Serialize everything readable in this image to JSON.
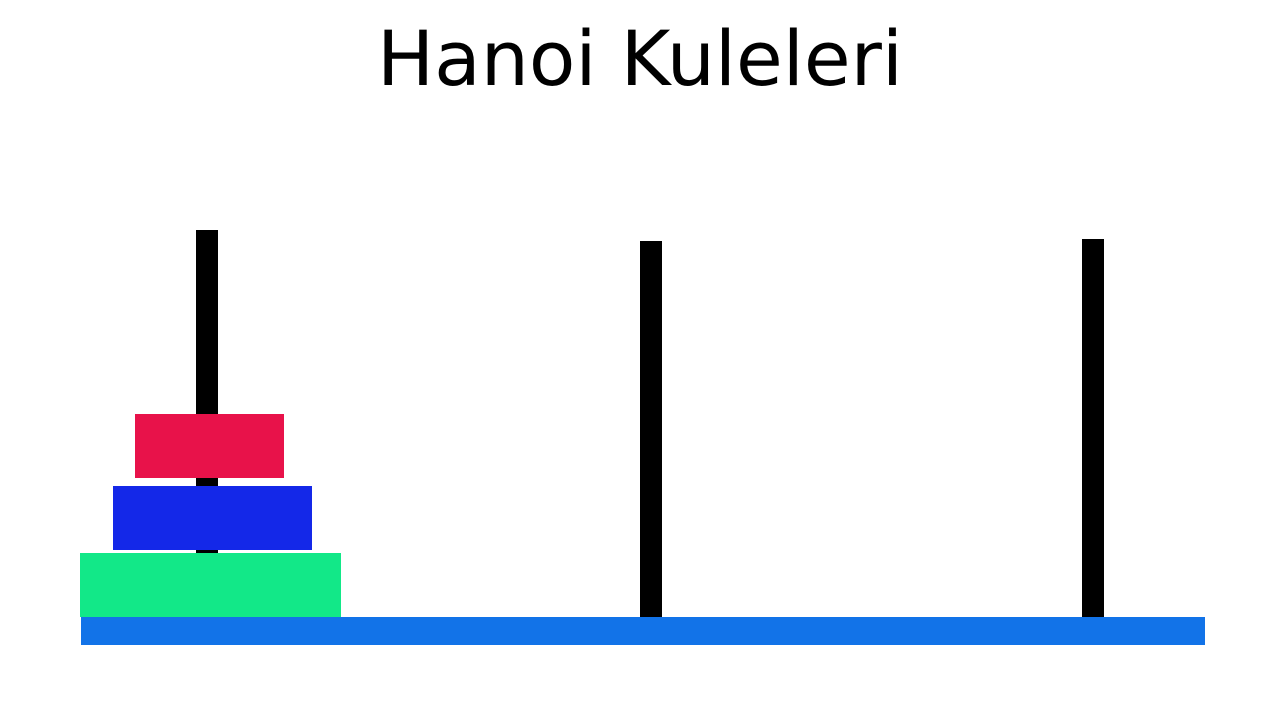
{
  "title": "Hanoi Kuleleri",
  "pegs": [
    {
      "id": "peg-1",
      "disks": [
        "large",
        "medium",
        "small"
      ]
    },
    {
      "id": "peg-2",
      "disks": []
    },
    {
      "id": "peg-3",
      "disks": []
    }
  ],
  "disks": {
    "small": {
      "color": "#E8124A"
    },
    "medium": {
      "color": "#1428E8"
    },
    "large": {
      "color": "#12E888"
    }
  },
  "colors": {
    "peg": "#000000",
    "base": "#1273E8",
    "background": "#FFFFFF",
    "title": "#000000"
  }
}
